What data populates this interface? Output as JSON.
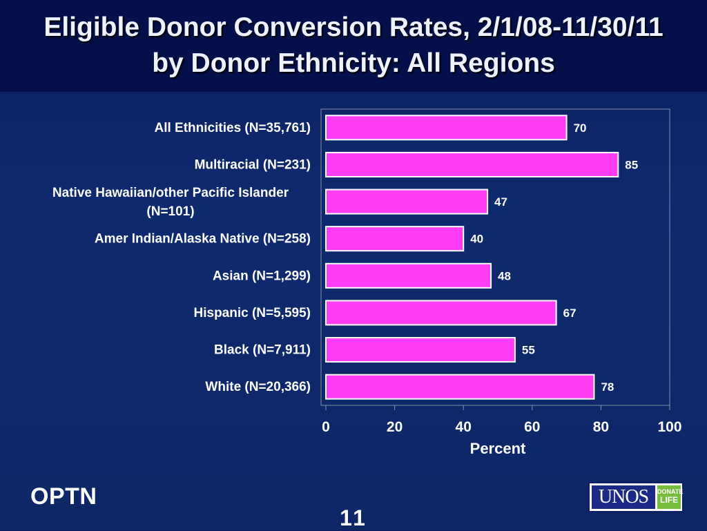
{
  "slide": {
    "title_line1": "Eligible Donor Conversion Rates, 2/1/08-11/30/11",
    "title_line2": "by Donor Ethnicity: All Regions",
    "footer_left": "OPTN",
    "page_number": "11",
    "logo_text": "UNOS",
    "logo_badge_top": "DONATE",
    "logo_badge_bottom": "LIFE"
  },
  "colors": {
    "bar_fill": "#ff3df5",
    "title_band": "#05104a",
    "background": "#0e2a6e",
    "text": "#ffffff"
  },
  "chart_data": {
    "type": "bar",
    "orientation": "horizontal",
    "categories": [
      "All Ethnicities (N=35,761)",
      "Multiracial (N=231)",
      "Native Hawaiian/other Pacific Islander (N=101)",
      "Amer Indian/Alaska Native (N=258)",
      "Asian (N=1,299)",
      "Hispanic (N=5,595)",
      "Black (N=7,911)",
      "White (N=20,366)"
    ],
    "category_lines": [
      [
        "All Ethnicities (N=35,761)"
      ],
      [
        "Multiracial (N=231)"
      ],
      [
        "Native Hawaiian/other Pacific Islander",
        "(N=101)"
      ],
      [
        "Amer Indian/Alaska Native (N=258)"
      ],
      [
        "Asian (N=1,299)"
      ],
      [
        "Hispanic (N=5,595)"
      ],
      [
        "Black (N=7,911)"
      ],
      [
        "White (N=20,366)"
      ]
    ],
    "values": [
      70,
      85,
      47,
      40,
      48,
      67,
      55,
      78
    ],
    "xlabel": "Percent",
    "ylabel": "",
    "xlim": [
      0,
      100
    ],
    "xticks": [
      0,
      20,
      40,
      60,
      80,
      100
    ],
    "grid": false,
    "legend": "none"
  }
}
